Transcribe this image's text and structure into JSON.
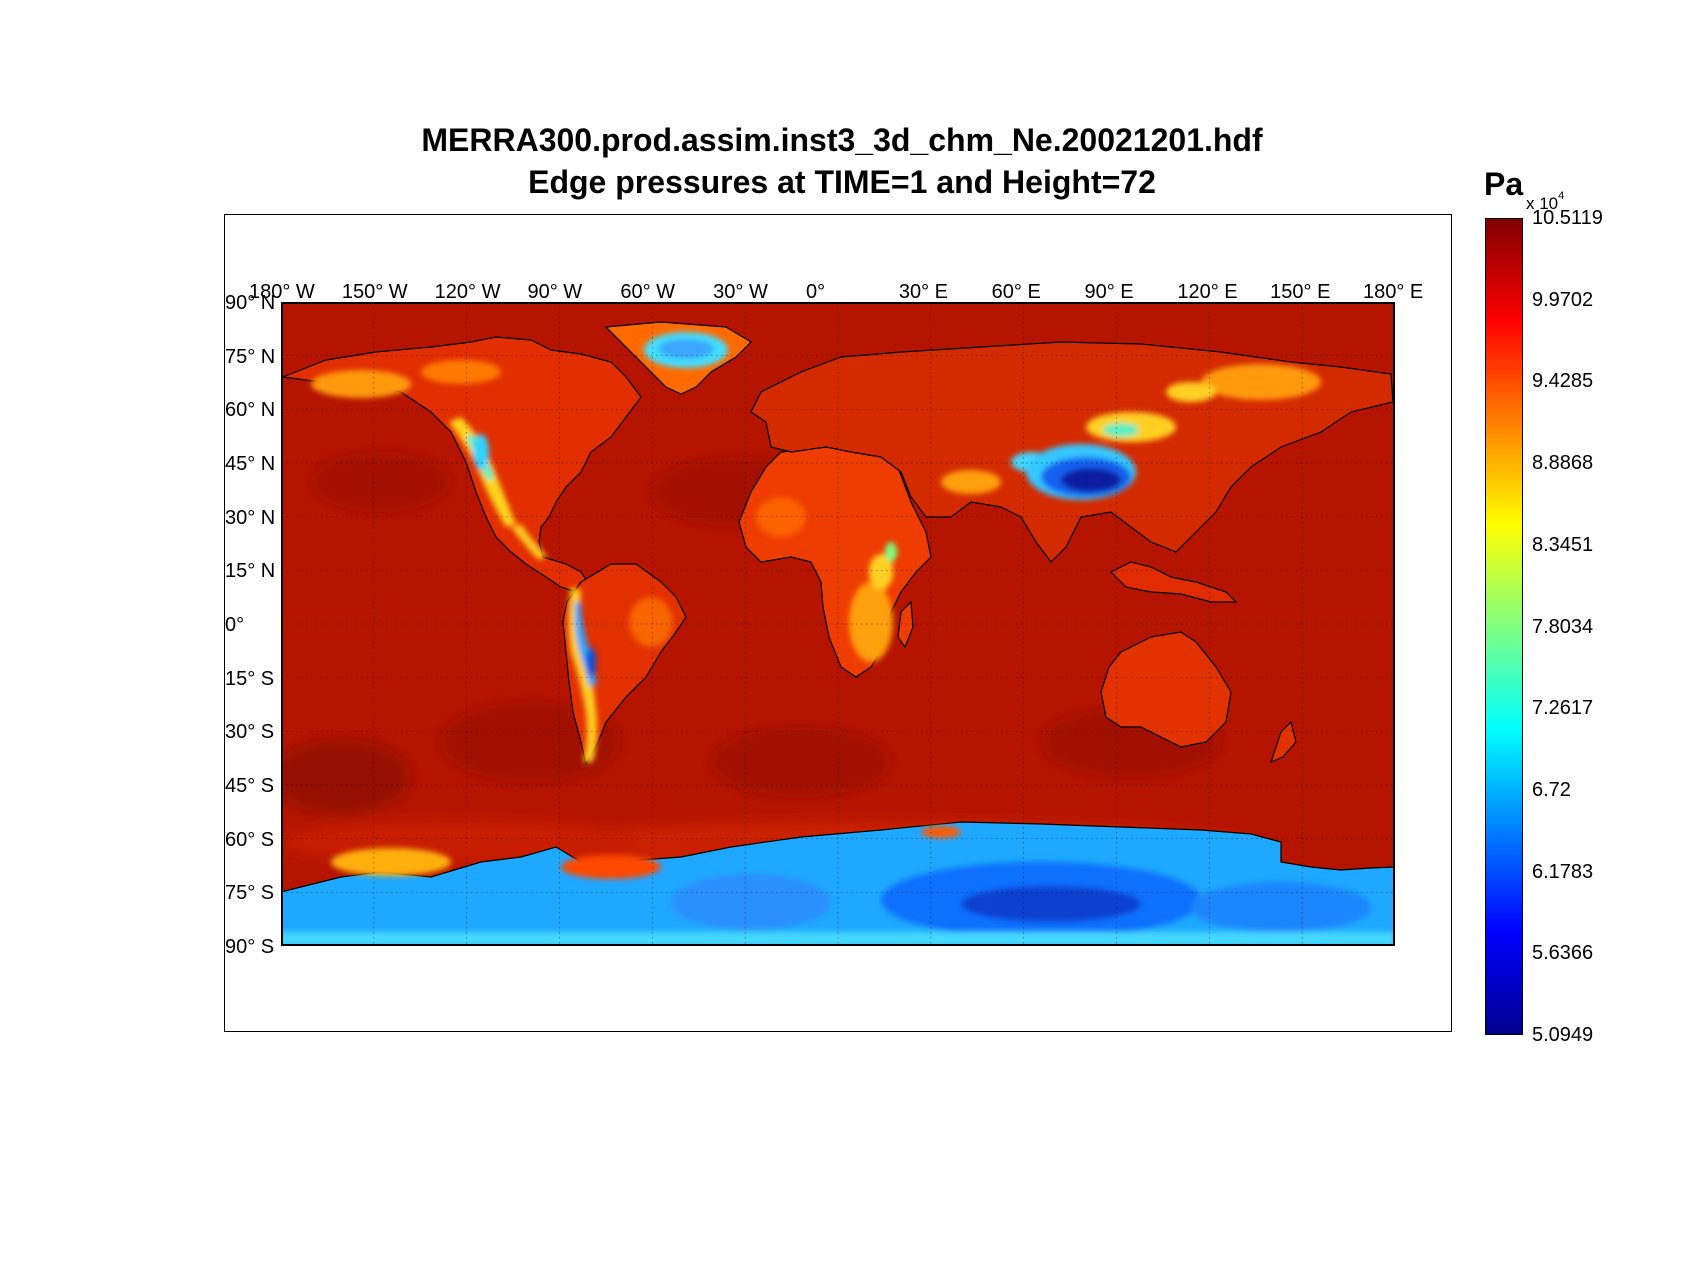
{
  "title": {
    "line1": "MERRA300.prod.assim.inst3_3d_chm_Ne.20021201.hdf",
    "line2": "Edge pressures at TIME=1 and Height=72"
  },
  "map": {
    "projection": "equirectangular",
    "lon_range": [
      -180,
      180
    ],
    "lat_range": [
      -90,
      90
    ],
    "background_color": "#b31400",
    "lon_labels": [
      "180° W",
      "150° W",
      "120° W",
      "90° W",
      "60° W",
      "30° W",
      "0°",
      "30° E",
      "60° E",
      "90° E",
      "120° E",
      "150° E",
      "180° E"
    ],
    "lat_labels": [
      "90° N",
      "75° N",
      "60° N",
      "45° N",
      "30° N",
      "15° N",
      "0°",
      "15° S",
      "30° S",
      "45° S",
      "60° S",
      "75° S",
      "90° S"
    ],
    "grid": "dotted"
  },
  "colorbar": {
    "unit": "Pa",
    "scale": "x 10",
    "scale_exp": "4",
    "min": 5.0949,
    "max": 10.5119,
    "colormap": "jet",
    "ticks": [
      "10.5119",
      "9.9702",
      "9.4285",
      "8.8868",
      "8.3451",
      "7.8034",
      "7.2617",
      "6.72",
      "6.1783",
      "5.6366",
      "5.0949"
    ]
  }
}
